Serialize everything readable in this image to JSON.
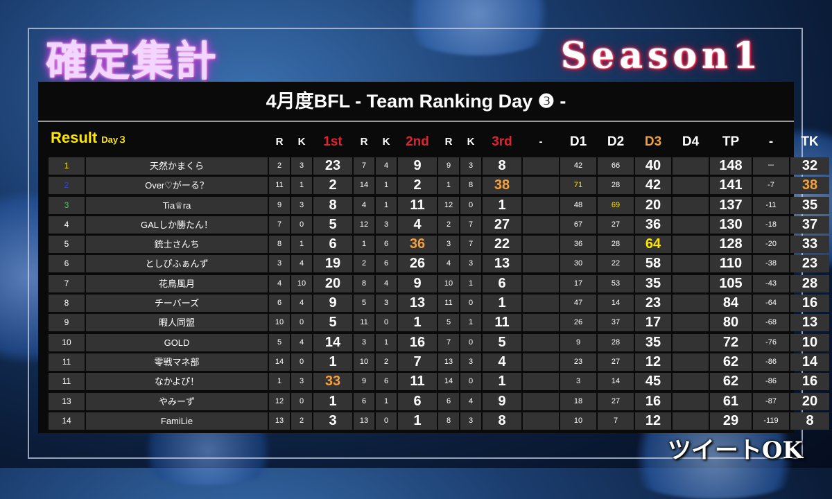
{
  "header": {
    "title": "確定集計",
    "season": "Season1",
    "board_title": "4月度BFL - Team Ranking Day ❸ -",
    "result_label": "Result",
    "day_label": "Day３"
  },
  "columns": [
    "R",
    "K",
    "1st",
    "R",
    "K",
    "2nd",
    "R",
    "K",
    "3rd",
    "-",
    "D1",
    "D2",
    "D3",
    "D4",
    "TP",
    "-",
    "TK"
  ],
  "rows": [
    {
      "rank": "1",
      "team": "天然かまくら",
      "r1": "2",
      "k1": "3",
      "p1": "23",
      "r2": "7",
      "k2": "4",
      "p2": "9",
      "r3": "9",
      "k3": "3",
      "p3": "8",
      "d1": "42",
      "d2": "66",
      "d3": "40",
      "d4": "",
      "tp": "148",
      "diff": "－",
      "tk": "32"
    },
    {
      "rank": "2",
      "team": "Over♡がーる？",
      "r1": "11",
      "k1": "1",
      "p1": "2",
      "r2": "14",
      "k2": "1",
      "p2": "2",
      "r3": "1",
      "k3": "8",
      "p3": "38",
      "d1": "71",
      "d2": "28",
      "d3": "42",
      "d4": "",
      "tp": "141",
      "diff": "-7",
      "tk": "38"
    },
    {
      "rank": "3",
      "team": "Tia♕ra",
      "r1": "9",
      "k1": "3",
      "p1": "8",
      "r2": "4",
      "k2": "1",
      "p2": "11",
      "r3": "12",
      "k3": "0",
      "p3": "1",
      "d1": "48",
      "d2": "69",
      "d3": "20",
      "d4": "",
      "tp": "137",
      "diff": "-11",
      "tk": "35"
    },
    {
      "rank": "4",
      "team": "GALしか勝たん！",
      "r1": "7",
      "k1": "0",
      "p1": "5",
      "r2": "12",
      "k2": "3",
      "p2": "4",
      "r3": "2",
      "k3": "7",
      "p3": "27",
      "d1": "67",
      "d2": "27",
      "d3": "36",
      "d4": "",
      "tp": "130",
      "diff": "-18",
      "tk": "37"
    },
    {
      "rank": "5",
      "team": "銃士さんち",
      "r1": "8",
      "k1": "1",
      "p1": "6",
      "r2": "1",
      "k2": "6",
      "p2": "36",
      "r3": "3",
      "k3": "7",
      "p3": "22",
      "d1": "36",
      "d2": "28",
      "d3": "64",
      "d4": "",
      "tp": "128",
      "diff": "-20",
      "tk": "33"
    },
    {
      "rank": "6",
      "team": "としぴふぁんず",
      "r1": "3",
      "k1": "4",
      "p1": "19",
      "r2": "2",
      "k2": "6",
      "p2": "26",
      "r3": "4",
      "k3": "3",
      "p3": "13",
      "d1": "30",
      "d2": "22",
      "d3": "58",
      "d4": "",
      "tp": "110",
      "diff": "-38",
      "tk": "23"
    },
    {
      "rank": "7",
      "team": "花鳥風月",
      "r1": "4",
      "k1": "10",
      "p1": "20",
      "r2": "8",
      "k2": "4",
      "p2": "9",
      "r3": "10",
      "k3": "1",
      "p3": "6",
      "d1": "17",
      "d2": "53",
      "d3": "35",
      "d4": "",
      "tp": "105",
      "diff": "-43",
      "tk": "28"
    },
    {
      "rank": "8",
      "team": "チーバーズ",
      "r1": "6",
      "k1": "4",
      "p1": "9",
      "r2": "5",
      "k2": "3",
      "p2": "13",
      "r3": "11",
      "k3": "0",
      "p3": "1",
      "d1": "47",
      "d2": "14",
      "d3": "23",
      "d4": "",
      "tp": "84",
      "diff": "-64",
      "tk": "16"
    },
    {
      "rank": "9",
      "team": "暇人同盟",
      "r1": "10",
      "k1": "0",
      "p1": "5",
      "r2": "11",
      "k2": "0",
      "p2": "1",
      "r3": "5",
      "k3": "1",
      "p3": "11",
      "d1": "26",
      "d2": "37",
      "d3": "17",
      "d4": "",
      "tp": "80",
      "diff": "-68",
      "tk": "13"
    },
    {
      "rank": "10",
      "team": "GOLD",
      "r1": "5",
      "k1": "4",
      "p1": "14",
      "r2": "3",
      "k2": "1",
      "p2": "16",
      "r3": "7",
      "k3": "0",
      "p3": "5",
      "d1": "9",
      "d2": "28",
      "d3": "35",
      "d4": "",
      "tp": "72",
      "diff": "-76",
      "tk": "10"
    },
    {
      "rank": "11",
      "team": "零戦マネ部",
      "r1": "14",
      "k1": "0",
      "p1": "1",
      "r2": "10",
      "k2": "2",
      "p2": "7",
      "r3": "13",
      "k3": "3",
      "p3": "4",
      "d1": "23",
      "d2": "27",
      "d3": "12",
      "d4": "",
      "tp": "62",
      "diff": "-86",
      "tk": "14"
    },
    {
      "rank": "11",
      "team": "なかよぴ！",
      "r1": "1",
      "k1": "3",
      "p1": "33",
      "r2": "9",
      "k2": "6",
      "p2": "11",
      "r3": "14",
      "k3": "0",
      "p3": "1",
      "d1": "3",
      "d2": "14",
      "d3": "45",
      "d4": "",
      "tp": "62",
      "diff": "-86",
      "tk": "16"
    },
    {
      "rank": "13",
      "team": "やみーず",
      "r1": "12",
      "k1": "0",
      "p1": "1",
      "r2": "6",
      "k2": "1",
      "p2": "6",
      "r3": "6",
      "k3": "4",
      "p3": "9",
      "d1": "18",
      "d2": "27",
      "d3": "16",
      "d4": "",
      "tp": "61",
      "diff": "-87",
      "tk": "20"
    },
    {
      "rank": "14",
      "team": "FamiLie",
      "r1": "13",
      "k1": "2",
      "p1": "3",
      "r2": "13",
      "k2": "0",
      "p2": "1",
      "r3": "8",
      "k3": "3",
      "p3": "8",
      "d1": "10",
      "d2": "7",
      "d3": "12",
      "d4": "",
      "tp": "29",
      "diff": "-119",
      "tk": "8"
    }
  ],
  "highlights": [
    {
      "row": 0,
      "field": "rank",
      "color": "#ffe600"
    },
    {
      "row": 1,
      "field": "rank",
      "color": "#2d3fff"
    },
    {
      "row": 2,
      "field": "rank",
      "color": "#3bd34b"
    },
    {
      "row": 1,
      "field": "p3",
      "color": "#f6a03c"
    },
    {
      "row": 1,
      "field": "d1",
      "color": "#ffe600"
    },
    {
      "row": 1,
      "field": "tk",
      "color": "#f6a03c"
    },
    {
      "row": 2,
      "field": "d2",
      "color": "#ffe600"
    },
    {
      "row": 4,
      "field": "p2",
      "color": "#f6a03c"
    },
    {
      "row": 4,
      "field": "d3",
      "color": "#ffe600"
    },
    {
      "row": 11,
      "field": "p1",
      "color": "#f6a03c"
    }
  ],
  "footer": {
    "tweet_ok": "ツイートOK"
  }
}
